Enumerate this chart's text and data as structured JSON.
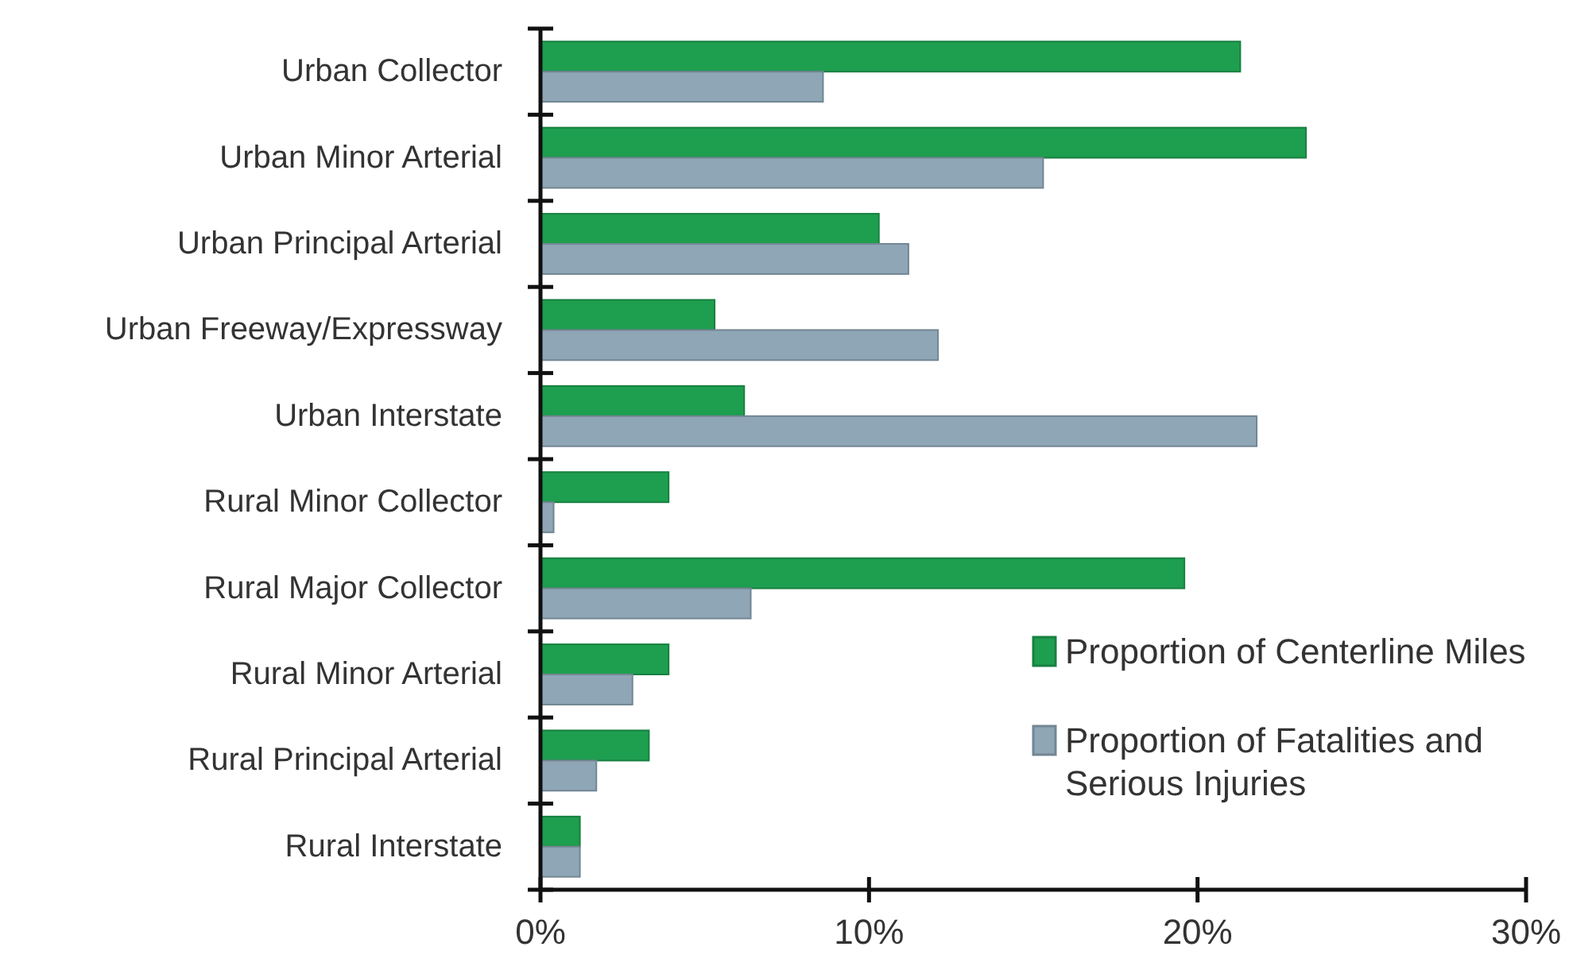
{
  "chart_data": {
    "type": "bar",
    "orientation": "horizontal",
    "categories": [
      "Urban Collector",
      "Urban Minor Arterial",
      "Urban Principal Arterial",
      "Urban Freeway/Expressway",
      "Urban Interstate",
      "Rural Minor Collector",
      "Rural Major Collector",
      "Rural Minor Arterial",
      "Rural Principal Arterial",
      "Rural Interstate"
    ],
    "series": [
      {
        "name": "Proportion of Centerline Miles",
        "color": "#1e9e4f",
        "values": [
          21.3,
          23.3,
          10.3,
          5.3,
          6.2,
          3.9,
          19.6,
          3.9,
          3.3,
          1.2
        ]
      },
      {
        "name": "Proportion of Fatalities and Serious Injuries",
        "color": "#8ea6b6",
        "values": [
          8.6,
          15.3,
          11.2,
          12.1,
          21.8,
          0.4,
          6.4,
          2.8,
          1.7,
          1.2
        ]
      }
    ],
    "xlim": [
      0,
      30
    ],
    "xticks": [
      {
        "value": 0,
        "label": "0%"
      },
      {
        "value": 10,
        "label": "10%"
      },
      {
        "value": 20,
        "label": "20%"
      },
      {
        "value": 30,
        "label": "30%"
      }
    ],
    "grid": false,
    "legend": "bottom right"
  }
}
